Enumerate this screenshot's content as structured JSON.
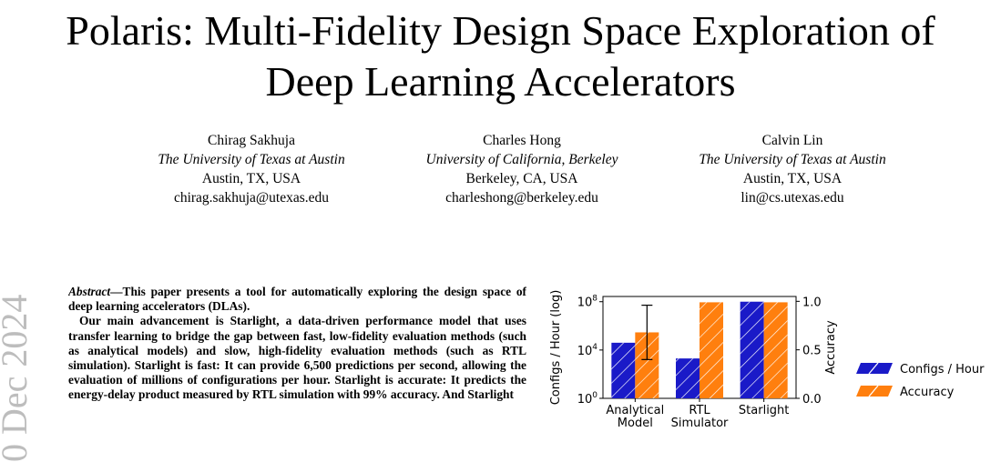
{
  "paper": {
    "title_line1": "Polaris: Multi-Fidelity Design Space Exploration of",
    "title_line2": "Deep Learning Accelerators",
    "side_stamp": "0 Dec 2024",
    "authors": [
      {
        "name": "Chirag Sakhuja",
        "affiliation": "The University of Texas at Austin",
        "location": "Austin, TX, USA",
        "email": "chirag.sakhuja@utexas.edu"
      },
      {
        "name": "Charles Hong",
        "affiliation": "University of California, Berkeley",
        "location": "Berkeley, CA, USA",
        "email": "charleshong@berkeley.edu"
      },
      {
        "name": "Calvin Lin",
        "affiliation": "The University of Texas at Austin",
        "location": "Austin, TX, USA",
        "email": "lin@cs.utexas.edu"
      }
    ],
    "abstract": {
      "lead": "Abstract",
      "text1": "—This paper presents a tool for automatically exploring the design space of deep learning accelerators (DLAs).",
      "text2": "Our main advancement is Starlight, a data-driven performance model that uses transfer learning to bridge the gap between fast, low-fidelity evaluation methods (such as analytical models) and slow, high-fidelity evaluation methods (such as RTL simulation). Starlight is fast: It can provide 6,500 predictions per second, allowing the evaluation of millions of configurations per hour. Starlight is accurate: It predicts the energy-delay product measured by RTL simulation with 99% accuracy. And Starlight"
    }
  },
  "chart_data": {
    "type": "bar",
    "categories": [
      "Analytical Model",
      "RTL Simulator",
      "Starlight"
    ],
    "category_lines": [
      [
        "Analytical",
        "Model"
      ],
      [
        "RTL",
        "Simulator"
      ],
      [
        "Starlight"
      ]
    ],
    "series": [
      {
        "name": "Configs / Hour",
        "axis": "left",
        "scale": "log",
        "values": [
          40000,
          2000,
          100000000
        ],
        "color": "#1a1ac8",
        "hatch": "diagonal"
      },
      {
        "name": "Accuracy",
        "axis": "right",
        "scale": "linear",
        "values": [
          0.68,
          0.99,
          0.99
        ],
        "error": [
          [
            0.4,
            0.96
          ],
          null,
          null
        ],
        "color": "#ff7f0e",
        "hatch": "diagonal"
      }
    ],
    "ylabel_left": "Configs / Hour (log)",
    "ylabel_right": "Accuracy",
    "ylim_left": [
      1,
      270000000
    ],
    "ylim_right": [
      0,
      1.05
    ],
    "yticks_left": [
      {
        "value": 1,
        "base": "10",
        "exp": "0"
      },
      {
        "value": 10000,
        "base": "10",
        "exp": "4"
      },
      {
        "value": 100000000,
        "base": "10",
        "exp": "8"
      }
    ],
    "yticks_right": [
      {
        "value": 0,
        "label": "0.0"
      },
      {
        "value": 0.5,
        "label": "0.5"
      },
      {
        "value": 1.0,
        "label": "1.0"
      }
    ],
    "legend_position": "right",
    "grid": false
  }
}
